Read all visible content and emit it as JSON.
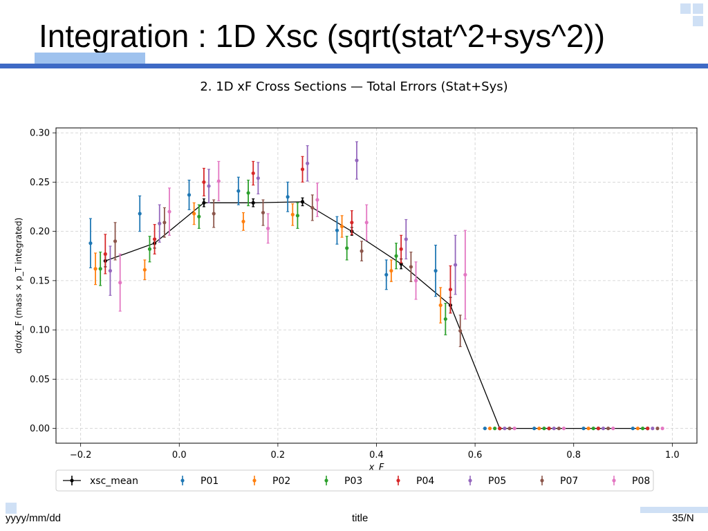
{
  "slide": {
    "title": "Integration : 1D Xsc (sqrt(stat^2+sys^2))",
    "footer_left": "yyyy/mm/dd",
    "footer_center": "title",
    "footer_right": "35/N"
  },
  "chart_data": {
    "type": "scatter",
    "title": "2. 1D xF Cross Sections — Total Errors (Stat+Sys)",
    "xlabel": "x_F",
    "ylabel": "dσ/dx_F (mass × p_T integrated)",
    "xlim": [
      -0.25,
      1.05
    ],
    "ylim": [
      -0.015,
      0.305
    ],
    "xticks": [
      "−0.2",
      "0.0",
      "0.2",
      "0.4",
      "0.6",
      "0.8",
      "1.0"
    ],
    "yticks": [
      "0.00",
      "0.05",
      "0.10",
      "0.15",
      "0.20",
      "0.25",
      "0.30"
    ],
    "grid": true,
    "legend_position": "bottom",
    "series": [
      {
        "name": "xsc_mean",
        "color": "#000000",
        "line": true,
        "points": [
          [
            -0.15,
            0.17,
            0.006
          ],
          [
            -0.05,
            0.188,
            0.005
          ],
          [
            0.05,
            0.229,
            0.004
          ],
          [
            0.15,
            0.229,
            0.004
          ],
          [
            0.25,
            0.23,
            0.004
          ],
          [
            0.35,
            0.2,
            0.004
          ],
          [
            0.45,
            0.167,
            0.005
          ],
          [
            0.55,
            0.125,
            0.008
          ],
          [
            0.65,
            0.0,
            0
          ],
          [
            0.75,
            0.0,
            0
          ],
          [
            0.85,
            0.0,
            0
          ],
          [
            0.95,
            0.0,
            0
          ]
        ]
      },
      {
        "name": "P01",
        "color": "#1f77b4",
        "points": [
          [
            -0.18,
            0.188,
            0.025
          ],
          [
            -0.08,
            0.218,
            0.018
          ],
          [
            0.02,
            0.237,
            0.015
          ],
          [
            0.12,
            0.241,
            0.014
          ],
          [
            0.22,
            0.235,
            0.015
          ],
          [
            0.32,
            0.201,
            0.014
          ],
          [
            0.42,
            0.156,
            0.015
          ],
          [
            0.52,
            0.16,
            0.026
          ],
          [
            0.62,
            0.0,
            0
          ],
          [
            0.72,
            0.0,
            0
          ],
          [
            0.82,
            0.0,
            0
          ],
          [
            0.92,
            0.0,
            0
          ]
        ]
      },
      {
        "name": "P02",
        "color": "#ff7f0e",
        "points": [
          [
            -0.17,
            0.162,
            0.016
          ],
          [
            -0.07,
            0.161,
            0.01
          ],
          [
            0.03,
            0.218,
            0.011
          ],
          [
            0.13,
            0.21,
            0.009
          ],
          [
            0.23,
            0.217,
            0.011
          ],
          [
            0.33,
            0.205,
            0.011
          ],
          [
            0.43,
            0.16,
            0.011
          ],
          [
            0.53,
            0.125,
            0.018
          ],
          [
            0.63,
            0.0,
            0
          ],
          [
            0.73,
            0.0,
            0
          ],
          [
            0.83,
            0.0,
            0
          ],
          [
            0.93,
            0.0,
            0
          ]
        ]
      },
      {
        "name": "P03",
        "color": "#2ca02c",
        "points": [
          [
            -0.16,
            0.162,
            0.017
          ],
          [
            -0.06,
            0.182,
            0.013
          ],
          [
            0.04,
            0.215,
            0.012
          ],
          [
            0.14,
            0.239,
            0.013
          ],
          [
            0.24,
            0.216,
            0.013
          ],
          [
            0.34,
            0.183,
            0.012
          ],
          [
            0.44,
            0.175,
            0.013
          ],
          [
            0.54,
            0.111,
            0.016
          ],
          [
            0.64,
            0.0,
            0
          ],
          [
            0.74,
            0.0,
            0
          ],
          [
            0.84,
            0.0,
            0
          ],
          [
            0.94,
            0.0,
            0
          ]
        ]
      },
      {
        "name": "P04",
        "color": "#d62728",
        "points": [
          [
            -0.15,
            0.177,
            0.02
          ],
          [
            -0.05,
            0.192,
            0.015
          ],
          [
            0.05,
            0.25,
            0.014
          ],
          [
            0.15,
            0.259,
            0.012
          ],
          [
            0.25,
            0.263,
            0.013
          ],
          [
            0.35,
            0.209,
            0.012
          ],
          [
            0.45,
            0.182,
            0.014
          ],
          [
            0.55,
            0.141,
            0.024
          ],
          [
            0.65,
            0.0,
            0
          ],
          [
            0.75,
            0.0,
            0
          ],
          [
            0.85,
            0.0,
            0
          ],
          [
            0.95,
            0.0,
            0
          ]
        ]
      },
      {
        "name": "P05",
        "color": "#9467bd",
        "points": [
          [
            -0.14,
            0.16,
            0.025
          ],
          [
            -0.04,
            0.208,
            0.019
          ],
          [
            0.06,
            0.246,
            0.017
          ],
          [
            0.16,
            0.254,
            0.016
          ],
          [
            0.26,
            0.269,
            0.018
          ],
          [
            0.36,
            0.272,
            0.019
          ],
          [
            0.46,
            0.192,
            0.02
          ],
          [
            0.56,
            0.166,
            0.03
          ],
          [
            0.66,
            0.0,
            0
          ],
          [
            0.76,
            0.0,
            0
          ],
          [
            0.86,
            0.0,
            0
          ],
          [
            0.96,
            0.0,
            0
          ]
        ]
      },
      {
        "name": "P07",
        "color": "#8c564b",
        "points": [
          [
            -0.13,
            0.19,
            0.019
          ],
          [
            -0.03,
            0.209,
            0.015
          ],
          [
            0.07,
            0.218,
            0.014
          ],
          [
            0.17,
            0.219,
            0.013
          ],
          [
            0.27,
            0.224,
            0.013
          ],
          [
            0.37,
            0.18,
            0.01
          ],
          [
            0.47,
            0.164,
            0.015
          ],
          [
            0.57,
            0.099,
            0.016
          ],
          [
            0.67,
            0.0,
            0
          ],
          [
            0.77,
            0.0,
            0
          ],
          [
            0.87,
            0.0,
            0
          ],
          [
            0.97,
            0.0,
            0
          ]
        ]
      },
      {
        "name": "P08",
        "color": "#e377c2",
        "points": [
          [
            -0.12,
            0.148,
            0.029
          ],
          [
            -0.02,
            0.22,
            0.024
          ],
          [
            0.08,
            0.251,
            0.02
          ],
          [
            0.18,
            0.203,
            0.015
          ],
          [
            0.28,
            0.232,
            0.017
          ],
          [
            0.38,
            0.209,
            0.018
          ],
          [
            0.48,
            0.15,
            0.019
          ],
          [
            0.58,
            0.156,
            0.045
          ],
          [
            0.68,
            0.0,
            0
          ],
          [
            0.78,
            0.0,
            0
          ],
          [
            0.88,
            0.0,
            0
          ],
          [
            0.98,
            0.0,
            0
          ]
        ]
      }
    ]
  }
}
